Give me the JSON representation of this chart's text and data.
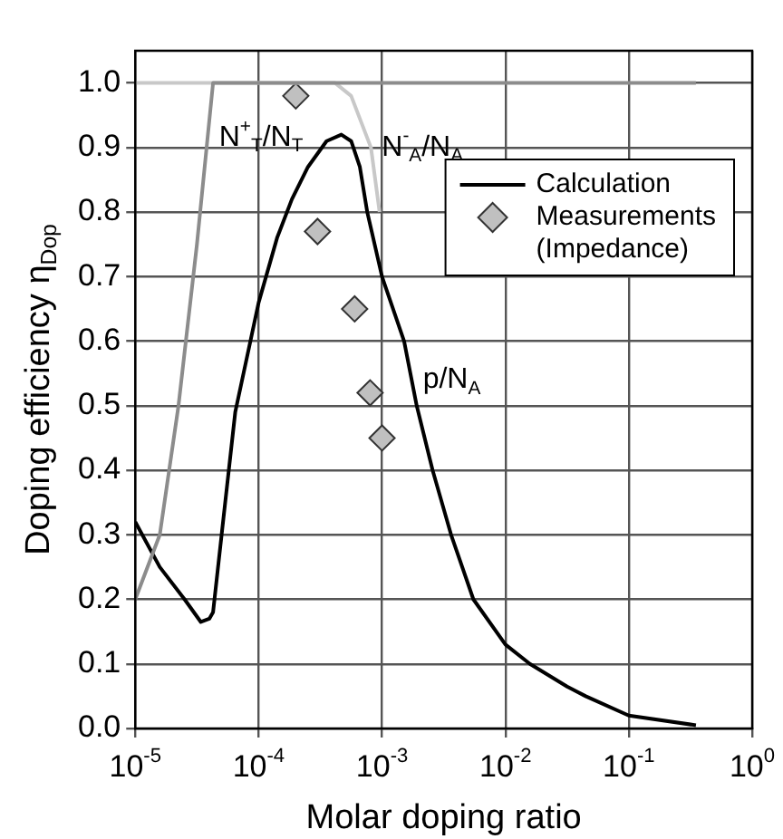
{
  "chart_data": {
    "type": "line",
    "xlabel": "Molar doping ratio",
    "ylabel": "Doping efficiency η$_{Dop}$",
    "log": "x",
    "xlim": [
      1e-05,
      1
    ],
    "xticks": [
      {
        "value": 1e-05,
        "label": "10$^{-5}$"
      },
      {
        "value": 0.0001,
        "label": "10$^{-4}$"
      },
      {
        "value": 0.001,
        "label": "10$^{-3}$"
      },
      {
        "value": 0.01,
        "label": "10$^{-2}$"
      },
      {
        "value": 0.1,
        "label": "10$^{-1}$"
      },
      {
        "value": 1,
        "label": "10$^{0}$"
      }
    ],
    "ylim": [
      0,
      1.05
    ],
    "yticks": [
      {
        "value": 0,
        "label": "0.0"
      },
      {
        "value": 0.1,
        "label": "0.1"
      },
      {
        "value": 0.2,
        "label": "0.2"
      },
      {
        "value": 0.3,
        "label": "0.3"
      },
      {
        "value": 0.4,
        "label": "0.4"
      },
      {
        "value": 0.5,
        "label": "0.5"
      },
      {
        "value": 0.6,
        "label": "0.6"
      },
      {
        "value": 0.7,
        "label": "0.7"
      },
      {
        "value": 0.8,
        "label": "0.8"
      },
      {
        "value": 0.9,
        "label": "0.9"
      },
      {
        "value": 1,
        "label": "1.0"
      }
    ],
    "grid": true,
    "legend": "top right",
    "line_style": "solid",
    "series": [
      {
        "color": "#8c8c8c",
        "marker": "none",
        "x": [
          1e-05,
          1.58e-05,
          2.24e-05,
          3.16e-05,
          4.27e-05,
          0.35
        ],
        "values": [
          0.2,
          0.3,
          0.5,
          0.75,
          1.0,
          1.0
        ]
      },
      {
        "color": "#c8c8c8",
        "marker": "none",
        "x": [
          1e-05,
          0.000417,
          0.000562,
          0.000813,
          0.000955
        ],
        "values": [
          1.0,
          1.0,
          0.98,
          0.9,
          0.8
        ]
      },
      {
        "name": "Calculation",
        "color": "#000000",
        "marker": "none",
        "x": [
          1e-05,
          1.58e-05,
          2.51e-05,
          3.4e-05,
          3.98e-05,
          4.27e-05,
          5.01e-05,
          6.46e-05,
          0.0001,
          0.000141,
          0.000186,
          0.000251,
          0.000355,
          0.000468,
          0.000562,
          0.000661,
          0.000759,
          0.001,
          0.00151,
          0.00191,
          0.00257,
          0.00363,
          0.0055,
          0.01,
          0.0158,
          0.0316,
          0.0447,
          0.1,
          0.35
        ],
        "values": [
          0.32,
          0.25,
          0.2,
          0.165,
          0.17,
          0.18,
          0.3,
          0.49,
          0.66,
          0.76,
          0.82,
          0.87,
          0.91,
          0.92,
          0.91,
          0.87,
          0.8,
          0.7,
          0.6,
          0.5,
          0.4,
          0.3,
          0.2,
          0.13,
          0.1,
          0.065,
          0.05,
          0.02,
          0.005
        ]
      },
      {
        "name": "Measurements\n(Impedance)",
        "type": "scatter",
        "color": "#c0c0c0",
        "marker": "diamond",
        "x": [
          0.0002,
          0.0003,
          0.0006,
          0.0008,
          0.001
        ],
        "values": [
          0.98,
          0.77,
          0.65,
          0.52,
          0.45
        ]
      }
    ],
    "annotations": [
      {
        "text": "N$^{+}$$_{T}$/N$_{T}$",
        "x": 3.9e-05,
        "y": 0.915
      },
      {
        "text": "N$^{-}$$_{A}$/N$_{A}$",
        "x": 0.000813,
        "y": 0.9
      },
      {
        "text": "p/N$_{A}$",
        "x": 0.00175,
        "y": 0.54
      }
    ]
  }
}
